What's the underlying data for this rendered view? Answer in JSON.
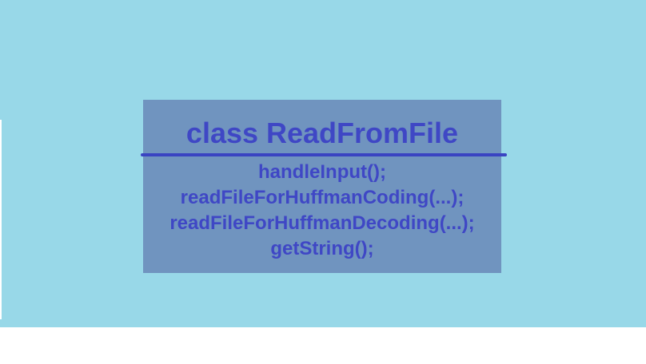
{
  "diagram": {
    "class_name": "class ReadFromFile",
    "methods": [
      "handleInput();",
      "readFileForHuffmanCoding(...);",
      "readFileForHuffmanDecoding(...);",
      "getString();"
    ],
    "colors": {
      "background": "#98d8e8",
      "box": "#7094bf",
      "text": "#3f47c5",
      "divider": "#3a44c2"
    }
  }
}
